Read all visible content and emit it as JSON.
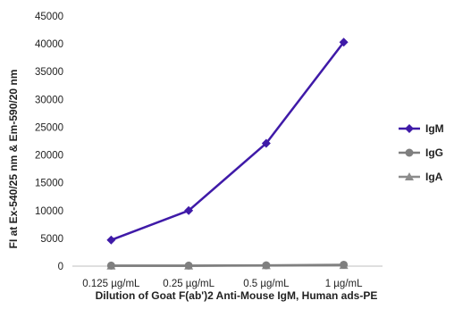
{
  "chart_data": {
    "type": "line",
    "title": "",
    "xlabel": "Dilution of Goat F(ab')2 Anti-Mouse IgM, Human ads-PE",
    "ylabel": "FI at Ex-540/25 nm & Em-590/20 nm",
    "categories": [
      "0.125 µg/mL",
      "0.25 µg/mL",
      "0.5 µg/mL",
      "1 µg/mL"
    ],
    "ylim": [
      0,
      45000
    ],
    "yticks": [
      0,
      5000,
      10000,
      15000,
      20000,
      25000,
      30000,
      35000,
      40000,
      45000
    ],
    "grid": false,
    "legend_position": "right",
    "series": [
      {
        "name": "IgM",
        "values": [
          4700,
          10000,
          22100,
          40300
        ],
        "color": "#3f1aa8",
        "marker": "diamond"
      },
      {
        "name": "IgG",
        "values": [
          100,
          100,
          150,
          250
        ],
        "color": "#7f7f7f",
        "marker": "circle"
      },
      {
        "name": "IgA",
        "values": [
          50,
          50,
          100,
          150
        ],
        "color": "#8c8c8c",
        "marker": "triangle"
      }
    ]
  }
}
